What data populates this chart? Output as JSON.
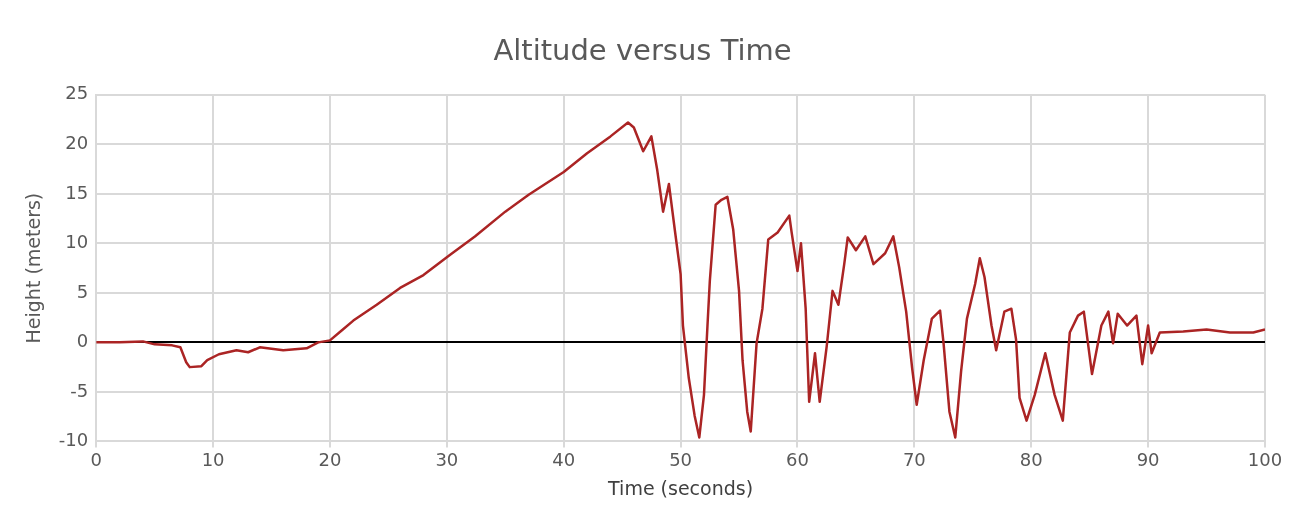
{
  "chart_data": {
    "type": "line",
    "title": "Altitude versus Time",
    "xlabel": "Time (seconds)",
    "ylabel": "Height (meters)",
    "xlim": [
      0,
      100
    ],
    "xticks": [
      0,
      10,
      20,
      30,
      40,
      50,
      60,
      70,
      80,
      90,
      100
    ],
    "ylim": [
      -10,
      25
    ],
    "yticks": [
      -10,
      -5,
      0,
      5,
      10,
      15,
      20,
      25
    ],
    "grid": true,
    "legend": false,
    "marker": "none",
    "line_style": "solid",
    "series": [
      {
        "color": "#ab2424",
        "x": [
          0,
          2,
          4,
          5,
          6.5,
          7.2,
          7.7,
          8,
          9,
          9.5,
          10.5,
          12,
          13,
          14,
          16,
          18,
          19,
          20,
          21,
          22,
          24,
          26,
          28,
          30,
          32.4,
          35,
          37,
          40,
          42,
          44,
          45.5,
          46,
          46.8,
          47.5,
          48,
          48.5,
          49,
          49.5,
          50,
          50.2,
          50.7,
          51.2,
          51.6,
          52,
          52.3,
          52.5,
          53,
          53.5,
          54,
          54.5,
          55,
          55.3,
          55.7,
          56,
          56.5,
          57,
          57.5,
          58.3,
          59.3,
          59.5,
          60,
          60.3,
          60.7,
          61,
          61.5,
          61.9,
          62.5,
          63,
          63.5,
          64,
          64.3,
          65,
          65.8,
          66.5,
          67.5,
          68.2,
          68.7,
          69.3,
          69.8,
          70.2,
          70.8,
          71.5,
          72.2,
          72.5,
          73,
          73.5,
          74,
          74.5,
          75.2,
          75.6,
          76,
          76.6,
          77,
          77.7,
          78.3,
          78.7,
          79,
          79.6,
          80.3,
          81.2,
          82,
          82.7,
          83.3,
          84,
          84.5,
          85.2,
          86,
          86.6,
          87,
          87.4,
          88.2,
          89,
          89.5,
          90,
          90.3,
          91,
          93,
          95,
          97,
          99,
          100
        ],
        "values": [
          0,
          0,
          0.1,
          -0.2,
          -0.3,
          -0.5,
          -2,
          -2.5,
          -2.4,
          -1.8,
          -1.2,
          -0.8,
          -1,
          -0.5,
          -0.8,
          -0.6,
          0,
          0.2,
          1.2,
          2.2,
          3.8,
          5.5,
          6.8,
          8.6,
          10.7,
          13.2,
          14.9,
          17.2,
          19.1,
          20.8,
          22.2,
          21.7,
          19.3,
          20.8,
          17.4,
          13.2,
          16,
          11.4,
          6.9,
          1.7,
          -3.6,
          -7.4,
          -9.6,
          -5.3,
          1.7,
          6.2,
          13.9,
          14.4,
          14.7,
          11.4,
          5.2,
          -1.8,
          -7,
          -9,
          -0.1,
          3.4,
          10.4,
          11.1,
          12.8,
          11.1,
          7.2,
          10,
          3.4,
          -6,
          -1.1,
          -6,
          -0.4,
          5.2,
          3.8,
          7.9,
          10.6,
          9.3,
          10.7,
          7.9,
          9,
          10.7,
          7.6,
          3.1,
          -2.5,
          -6.3,
          -1.8,
          2.4,
          3.2,
          -0.1,
          -7,
          -9.6,
          -2.9,
          2.4,
          5.9,
          8.5,
          6.6,
          1.7,
          -0.8,
          3.1,
          3.4,
          0.3,
          -5.6,
          -7.9,
          -5.3,
          -1.1,
          -5.3,
          -7.9,
          1,
          2.7,
          3.1,
          -3.2,
          1.7,
          3.1,
          -0.1,
          2.9,
          1.7,
          2.7,
          -2.2,
          1.7,
          -1.1,
          1,
          1.1,
          1.3,
          1,
          1,
          1.3
        ]
      }
    ]
  }
}
